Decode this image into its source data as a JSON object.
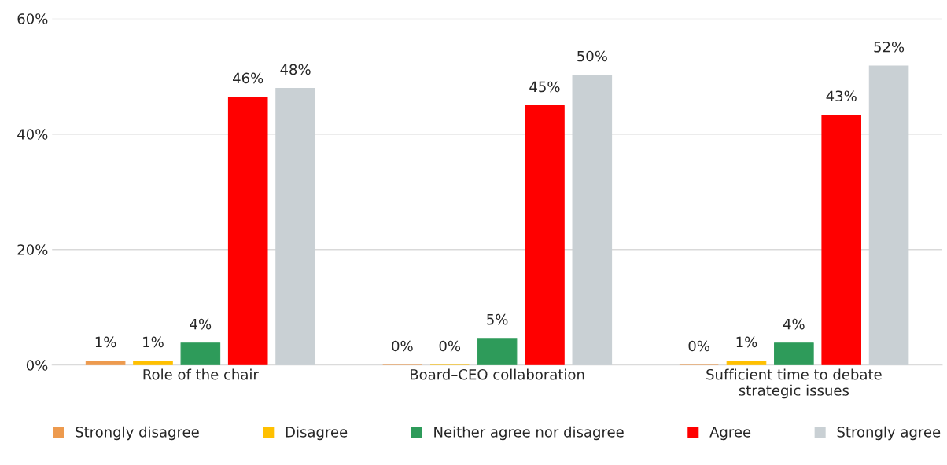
{
  "chart_data": {
    "type": "bar",
    "categories": [
      "Role of the chair",
      "Board–CEO collaboration",
      "Sufficient time to debate\nstrategic issues"
    ],
    "series": [
      {
        "name": "Strongly disagree",
        "color": "#ed9a4e",
        "values": [
          0.7,
          0,
          0
        ],
        "value_labels": [
          "1%",
          "0%",
          "0%"
        ]
      },
      {
        "name": "Disagree",
        "color": "#ffc000",
        "values": [
          0.7,
          0,
          0.7
        ],
        "value_labels": [
          "1%",
          "0%",
          "1%"
        ]
      },
      {
        "name": "Neither agree nor disagree",
        "color": "#2e9b5a",
        "values": [
          3.8,
          4.6,
          3.8
        ],
        "value_labels": [
          "4%",
          "5%",
          "4%"
        ]
      },
      {
        "name": "Agree",
        "color": "#ff0000",
        "values": [
          46.4,
          44.9,
          43.3
        ],
        "value_labels": [
          "46%",
          "45%",
          "43%"
        ]
      },
      {
        "name": "Strongly agree",
        "color": "#c9d0d4",
        "values": [
          47.9,
          50.2,
          51.8
        ],
        "value_labels": [
          "48%",
          "50%",
          "52%"
        ]
      }
    ],
    "ylim": [
      0,
      60
    ],
    "yticks": [
      {
        "value": 0,
        "label": "0%"
      },
      {
        "value": 20,
        "label": "20%"
      },
      {
        "value": 40,
        "label": "40%"
      },
      {
        "value": 60,
        "label": "60%"
      }
    ],
    "grid": "y",
    "legend": "bottom"
  }
}
